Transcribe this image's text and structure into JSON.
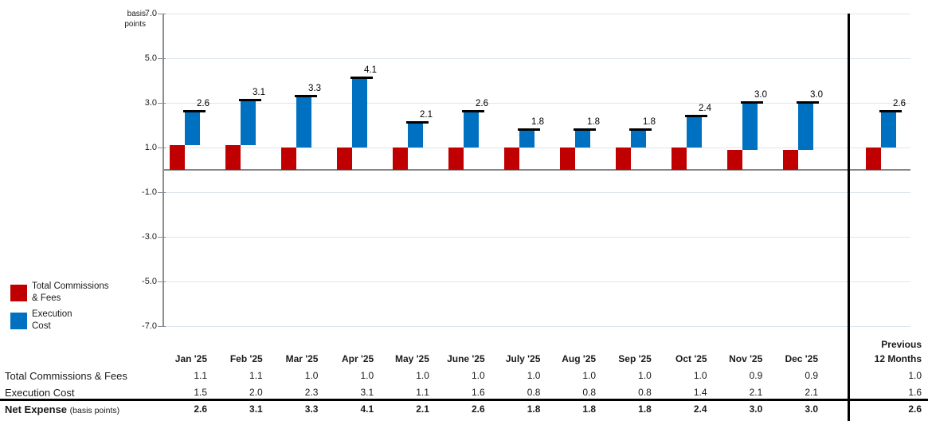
{
  "chart": {
    "unit_label": {
      "line1": "basis",
      "line2": "points"
    },
    "ytick_labels": [
      "7.0",
      "5.0",
      "3.0",
      "1.0",
      "-1.0",
      "-3.0",
      "-5.0",
      "-7.0"
    ],
    "legend": [
      {
        "name": "Total Commissions & Fees",
        "line1": "Total Commissions",
        "line2": "& Fees",
        "color": "#C00000"
      },
      {
        "name": "Execution Cost",
        "line1": "Execution",
        "line2": "Cost",
        "color": "#0070C0"
      }
    ]
  },
  "chart_data": {
    "type": "bar",
    "subtype": "stacked-waterfall",
    "title": "",
    "ylabel": "basis points",
    "ylim": [
      -7.0,
      7.0
    ],
    "ytick_values": [
      7,
      5,
      3,
      1,
      -1,
      -3,
      -5,
      -7
    ],
    "grid": true,
    "legend_position": "left-bottom",
    "categories": [
      "Jan '25",
      "Feb '25",
      "Mar '25",
      "Apr '25",
      "May '25",
      "June '25",
      "July '25",
      "Aug '25",
      "Sep '25",
      "Oct '25",
      "Nov '25",
      "Dec '25",
      "Previous 12 Months"
    ],
    "series": [
      {
        "name": "Total Commissions & Fees",
        "color": "#C00000",
        "values": [
          1.1,
          1.1,
          1.0,
          1.0,
          1.0,
          1.0,
          1.0,
          1.0,
          1.0,
          1.0,
          0.9,
          0.9,
          1.0
        ]
      },
      {
        "name": "Execution Cost",
        "color": "#0070C0",
        "values": [
          1.5,
          2.0,
          2.3,
          3.1,
          1.1,
          1.6,
          0.8,
          0.8,
          0.8,
          1.4,
          2.1,
          2.1,
          1.6
        ]
      }
    ],
    "totals": [
      2.6,
      3.1,
      3.3,
      4.1,
      2.1,
      2.6,
      1.8,
      1.8,
      1.8,
      2.4,
      3.0,
      3.0,
      2.6
    ],
    "total_labels": [
      "2.6",
      "3.1",
      "3.3",
      "4.1",
      "2.1",
      "2.6",
      "1.8",
      "1.8",
      "1.8",
      "2.4",
      "3.0",
      "3.0",
      "2.6"
    ]
  },
  "table": {
    "col_headers": [
      "Jan '25",
      "Feb '25",
      "Mar '25",
      "Apr '25",
      "May '25",
      "June '25",
      "July '25",
      "Aug '25",
      "Sep '25",
      "Oct '25",
      "Nov '25",
      "Dec '25"
    ],
    "prev_header_line1": "Previous",
    "prev_header_line2": "12 Months",
    "rows": [
      {
        "label": "Total Commissions & Fees",
        "note": "",
        "values": [
          "1.1",
          "1.1",
          "1.0",
          "1.0",
          "1.0",
          "1.0",
          "1.0",
          "1.0",
          "1.0",
          "1.0",
          "0.9",
          "0.9"
        ],
        "prev": "1.0",
        "bold": false
      },
      {
        "label": "Execution Cost",
        "note": "",
        "values": [
          "1.5",
          "2.0",
          "2.3",
          "3.1",
          "1.1",
          "1.6",
          "0.8",
          "0.8",
          "0.8",
          "1.4",
          "2.1",
          "2.1"
        ],
        "prev": "1.6",
        "bold": false
      },
      {
        "label": "Net Expense",
        "note": "(basis points)",
        "values": [
          "2.6",
          "3.1",
          "3.3",
          "4.1",
          "2.1",
          "2.6",
          "1.8",
          "1.8",
          "1.8",
          "2.4",
          "3.0",
          "3.0"
        ],
        "prev": "2.6",
        "bold": true
      }
    ]
  },
  "colors": {
    "commissions": "#C00000",
    "execution": "#0070C0",
    "gridline": "#dce6f0",
    "axis": "#8c8c8c",
    "rule": "#000000"
  }
}
